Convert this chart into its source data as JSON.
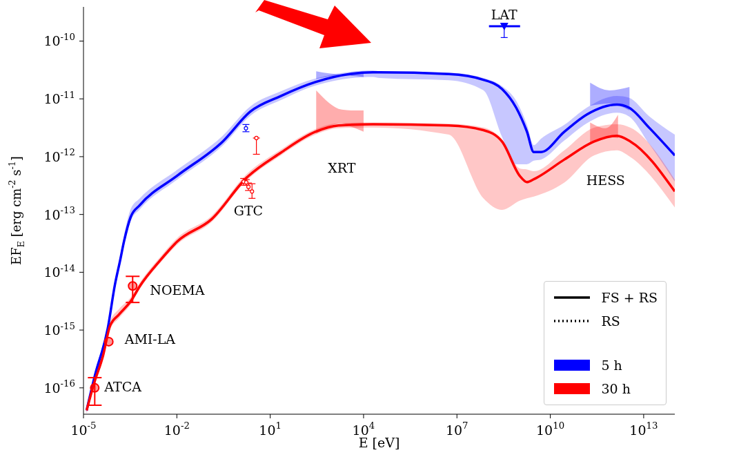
{
  "chart_data": {
    "type": "line",
    "xlabel": "E [eV]",
    "ylabel": "EF$_{E}$ [erg cm$^{-2}$ s$^{-1}$]",
    "log": "xy",
    "legend": "bottom right",
    "xlim": [
      1e-05,
      100000000000000.0
    ],
    "ylim": [
      3.5e-17,
      3.9e-10
    ],
    "xticks": [
      {
        "value": 1e-05,
        "label": "10$^{-5}$"
      },
      {
        "value": 0.01,
        "label": "10$^{-2}$"
      },
      {
        "value": 10,
        "label": "10$^{1}$"
      },
      {
        "value": 10000.0,
        "label": "10$^{4}$"
      },
      {
        "value": 10000000.0,
        "label": "10$^{7}$"
      },
      {
        "value": 10000000000.0,
        "label": "10$^{10}$"
      },
      {
        "value": 10000000000000.0,
        "label": "10$^{13}$"
      }
    ],
    "yticks": [
      {
        "value": 1e-16,
        "label": "10$^{-16}$"
      },
      {
        "value": 1e-15,
        "label": "10$^{-15}$"
      },
      {
        "value": 1e-14,
        "label": "10$^{-14}$"
      },
      {
        "value": 1e-13,
        "label": "10$^{-13}$"
      },
      {
        "value": 1e-12,
        "label": "10$^{-12}$"
      },
      {
        "value": 1e-11,
        "label": "10$^{-11}$"
      },
      {
        "value": 1e-10,
        "label": "10$^{-10}$"
      }
    ],
    "series": [
      {
        "name": "FS + RS",
        "color": "#000000",
        "line_style": "solid"
      },
      {
        "name": "RS",
        "color": "#000000",
        "line_style": "dotted"
      },
      {
        "name": "5 h",
        "color": "#0000ff",
        "x": [
          1.26e-05,
          2.29e-05,
          6.03e-05,
          0.000102,
          0.000151,
          0.0002,
          0.000331,
          0.000646,
          0.0102,
          0.295,
          2.29,
          21.9,
          282,
          20000.0,
          33100.0,
          5500000.0,
          70800000.0,
          282000000.0,
          794000000.0,
          1780000000.0,
          2950000000.0,
          5010000000.0,
          28200000000.0,
          151000000000.0,
          1380000000000.0,
          3310000000000.0,
          15100000000000.0,
          100000000000000.0
        ],
        "values": [
          4.07e-17,
          1.58e-16,
          1.07e-15,
          6.03e-15,
          1.62e-14,
          3.39e-14,
          9.12e-14,
          1.45e-13,
          4.68e-13,
          1.82e-12,
          6.03e-12,
          1.12e-11,
          1.95e-11,
          2.88e-11,
          2.88e-11,
          2.69e-11,
          2.14e-11,
          1.48e-11,
          7.08e-12,
          2.69e-12,
          1.2e-12,
          1.2e-12,
          2.69e-12,
          5.37e-12,
          7.94e-12,
          7.08e-12,
          3.16e-12,
          1.05e-12
        ],
        "lower": [
          3.6e-17,
          1.35e-16,
          9.1e-16,
          5.1e-15,
          1.38e-14,
          2.9e-14,
          7.8e-14,
          1.23e-13,
          4e-13,
          1.55e-12,
          5.1e-12,
          9.5e-12,
          1.7e-11,
          2.4e-11,
          2.3e-11,
          2.1e-11,
          1.41e-11,
          2.19e-12,
          7.4e-13,
          7.4e-13,
          8.5e-13,
          8.9e-13,
          1.9e-12,
          3.8e-12,
          5.75e-12,
          5e-12,
          1.66e-12,
          3.7e-13
        ],
        "upper": [
          4.8e-17,
          1.85e-16,
          1.25e-15,
          7.1e-15,
          1.9e-14,
          4.3e-14,
          1.25e-13,
          1.9e-13,
          5.9e-13,
          2.3e-12,
          7.4e-12,
          1.35e-11,
          2.25e-11,
          3.1e-11,
          3e-11,
          2.85e-11,
          2.3e-11,
          1.66e-11,
          9.3e-12,
          3.55e-12,
          1.58e-12,
          2.04e-12,
          3.55e-12,
          7.08e-12,
          1.12e-11,
          1.05e-11,
          5e-12,
          2.4e-12
        ]
      },
      {
        "name": "30 h",
        "color": "#ff0000",
        "x": [
          1.26e-05,
          2.19e-05,
          4.27e-05,
          7.08e-05,
          0.000138,
          0.000331,
          0.000646,
          0.00295,
          0.0102,
          0.132,
          1.7,
          21.9,
          282,
          1550.0,
          20000.0,
          5500000.0,
          70800000.0,
          282000000.0,
          1070000000.0,
          1780000000.0,
          2950000000.0,
          28200000000.0,
          251000000000.0,
          1380000000000.0,
          3800000000000.0,
          100000000000000.0
        ],
        "values": [
          4.07e-17,
          1.2e-16,
          3.63e-16,
          1.17e-15,
          1.86e-15,
          3.16e-15,
          5.75e-15,
          1.62e-14,
          3.39e-14,
          8.32e-14,
          4.27e-13,
          1.17e-12,
          2.69e-12,
          3.47e-12,
          3.63e-12,
          3.47e-12,
          2.88e-12,
          1.82e-12,
          4.57e-13,
          3.63e-13,
          4.07e-13,
          8.91e-13,
          1.82e-12,
          2.29e-12,
          1.82e-12,
          2.51e-13
        ],
        "lower": [
          3.6e-17,
          1.05e-16,
          3.2e-16,
          1e-15,
          1.6e-15,
          2.8e-15,
          5.1e-15,
          1.45e-14,
          3e-14,
          7.4e-14,
          3.8e-13,
          1.05e-12,
          2.4e-12,
          3.1e-12,
          3.2e-12,
          2.4e-12,
          1.9e-13,
          1.2e-13,
          1.74e-13,
          1.9e-13,
          2.04e-13,
          3.55e-13,
          1.05e-12,
          1.29e-12,
          9.8e-13,
          1.32e-13
        ],
        "upper": [
          4.6e-17,
          1.4e-16,
          4.2e-16,
          1.4e-15,
          2.3e-15,
          3.7e-15,
          6.6e-15,
          1.85e-14,
          3.9e-14,
          9.5e-14,
          4.9e-13,
          1.32e-12,
          3e-12,
          3.8e-12,
          3.9e-12,
          3.7e-12,
          3.2e-12,
          2e-12,
          6.2e-13,
          6e-13,
          5.6e-13,
          1.29e-12,
          3.16e-12,
          3.63e-12,
          3.16e-12,
          4e-13
        ]
      },
      {
        "type": "area",
        "color": "#0000ff",
        "x": [
          300,
          2000,
          10000
        ],
        "values": [
          null,
          null,
          null
        ],
        "lower": [
          2.2e-11,
          2.55e-11,
          2.4e-11
        ],
        "upper": [
          3e-11,
          2.65e-11,
          2.85e-11
        ]
      },
      {
        "type": "area",
        "color": "#ff0000",
        "x": [
          300,
          2000,
          4000,
          10000
        ],
        "values": [
          null,
          null,
          null,
          null
        ],
        "lower": [
          2.5e-12,
          3.8e-12,
          3.3e-12,
          2.7e-12
        ],
        "upper": [
          1.4e-11,
          6.5e-12,
          6.3e-12,
          6.3e-12
        ]
      },
      {
        "type": "area",
        "color": "#0000ff",
        "x": [
          190000000000.0,
          800000000000.0,
          3500000000000.0
        ],
        "values": [
          null,
          null,
          null
        ],
        "lower": [
          7.6e-12,
          8.3e-12,
          6.3e-12
        ],
        "upper": [
          1.9e-11,
          1.4e-11,
          1.6e-11
        ]
      },
      {
        "type": "area",
        "color": "#ff0000",
        "x": [
          190000000000.0,
          600000000000.0,
          1500000000000.0
        ],
        "values": [
          null,
          null,
          null
        ],
        "lower": [
          1.6e-12,
          2.2e-12,
          2.1e-12
        ],
        "upper": [
          3.9e-12,
          3.1e-12,
          5.3e-12
        ]
      },
      {
        "type": "scatter",
        "color": "#ff0000",
        "marker": "circle",
        "x": [
          2.3e-05,
          6.5e-05,
          0.00038
        ],
        "values": [
          1e-16,
          6.3e-16,
          5.8e-15
        ],
        "errors": [
          [
            5e-17,
            1.5e-16
          ],
          null,
          [
            3e-15,
            8.5e-15
          ]
        ]
      },
      {
        "type": "scatter",
        "color": "#ff0000",
        "marker": "circle",
        "x": [
          1.4,
          1.7,
          2.0,
          2.6
        ],
        "values": [
          3.7e-13,
          3.6e-13,
          3e-13,
          2.5e-13
        ],
        "errors": [
          [
            3.2e-13,
            4.2e-13
          ],
          [
            3.2e-13,
            4e-13
          ],
          [
            2.6e-13,
            3.5e-13
          ],
          [
            1.9e-13,
            3.4e-13
          ]
        ]
      },
      {
        "type": "scatter",
        "color": "#0000ff",
        "marker": "circle",
        "x": [
          1.66
        ],
        "values": [
          3.1e-12
        ],
        "errors": [
          [
            2.7e-12,
            3.6e-12
          ]
        ]
      },
      {
        "type": "scatter",
        "color": "#ff0000",
        "marker": "circle",
        "x": [
          3.6
        ],
        "values": [
          2.1e-12
        ],
        "errors": [
          [
            1.1e-12,
            2.1e-12
          ]
        ]
      },
      {
        "type": "scatter",
        "color": "#0000ff",
        "marker": "triangle",
        "x": [
          330000000.0
        ],
        "values": [
          1.8e-10
        ],
        "errors": [
          [
            1.15e-10,
            1.8e-10
          ]
        ],
        "xerrors": [
          [
            107000000.0,
            1070000000.0
          ]
        ]
      }
    ],
    "annotations": [
      {
        "text": "LAT",
        "x": 330000000.0,
        "y": 1.8e-10
      },
      {
        "text": "XRT",
        "x": 2000,
        "y": 3.8e-12
      },
      {
        "text": "HESS",
        "x": 600000000000.0,
        "y": 2.2e-12
      },
      {
        "text": "GTC",
        "x": 1.7,
        "y": 3.6e-13
      },
      {
        "text": "NOEMA",
        "x": 0.00038,
        "y": 5.8e-15
      },
      {
        "text": "AMI-LA",
        "x": 6.5e-05,
        "y": 6.3e-16
      },
      {
        "text": "ATCA",
        "x": 2.3e-05,
        "y": 1e-16
      }
    ]
  }
}
